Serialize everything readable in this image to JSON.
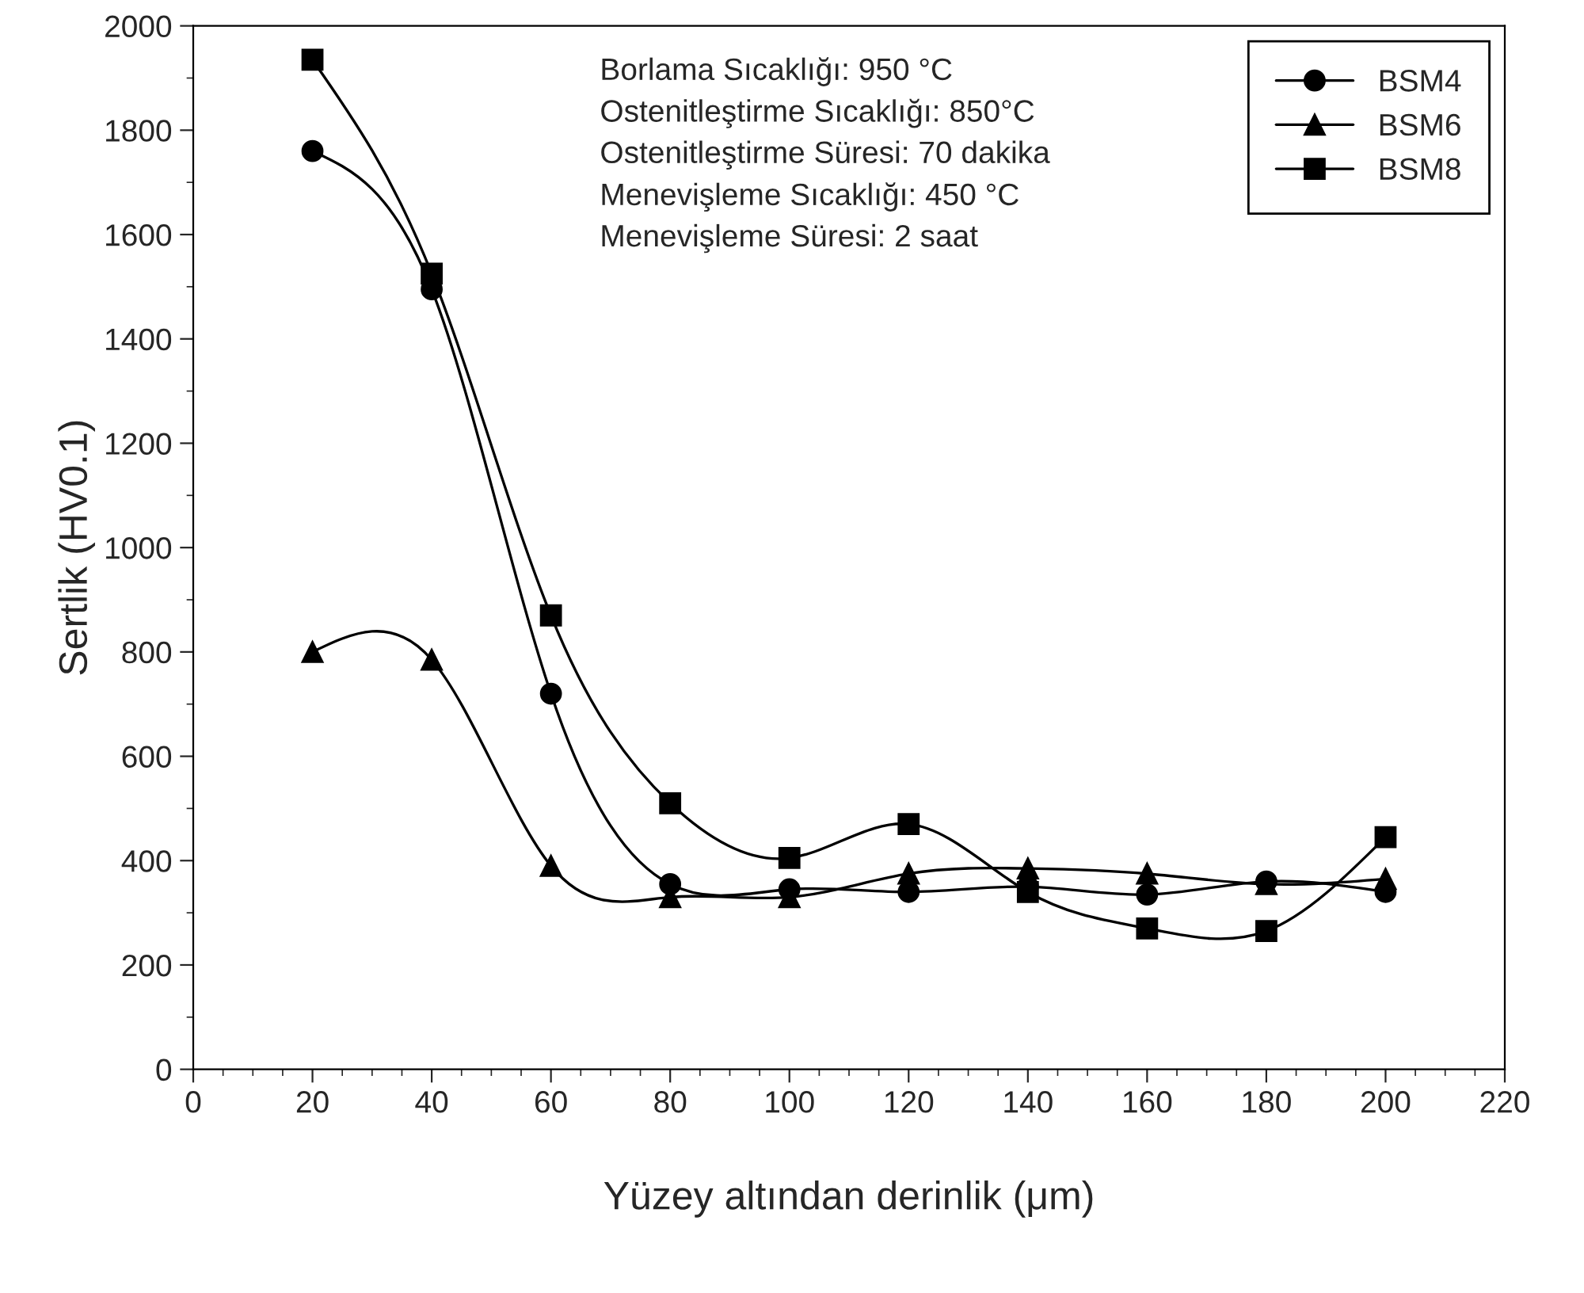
{
  "chart_data": {
    "type": "line",
    "xlabel": "Yüzey altından derinlik (μm)",
    "ylabel": "Sertlik (HV0.1)",
    "x": [
      20,
      40,
      60,
      80,
      100,
      120,
      140,
      160,
      180,
      200
    ],
    "series": [
      {
        "name": "BSM4",
        "color": "#000000",
        "marker": "circle",
        "values": [
          1760,
          1495,
          720,
          355,
          345,
          340,
          350,
          335,
          360,
          340
        ]
      },
      {
        "name": "BSM6",
        "color": "#000000",
        "marker": "triangle",
        "values": [
          800,
          785,
          390,
          330,
          330,
          375,
          385,
          375,
          355,
          365
        ]
      },
      {
        "name": "BSM8",
        "color": "#000000",
        "marker": "square",
        "values": [
          1935,
          1525,
          870,
          510,
          405,
          470,
          340,
          270,
          265,
          445
        ]
      }
    ],
    "xlim": [
      0,
      220
    ],
    "xticks": [
      0,
      20,
      40,
      60,
      80,
      100,
      120,
      140,
      160,
      180,
      200,
      220
    ],
    "ylim": [
      0,
      2000
    ],
    "yticks": [
      0,
      200,
      400,
      600,
      800,
      1000,
      1200,
      1400,
      1600,
      1800,
      2000
    ],
    "grid": false,
    "legend": "top right",
    "annotations": [
      "Borlama Sıcaklığı: 950 °C",
      "Ostenitleştirme Sıcaklığı: 850°C",
      "Ostenitleştirme Süresi: 70 dakika",
      "Menevişleme Sıcaklığı: 450 °C",
      "Menevişleme Süresi: 2 saat"
    ]
  }
}
